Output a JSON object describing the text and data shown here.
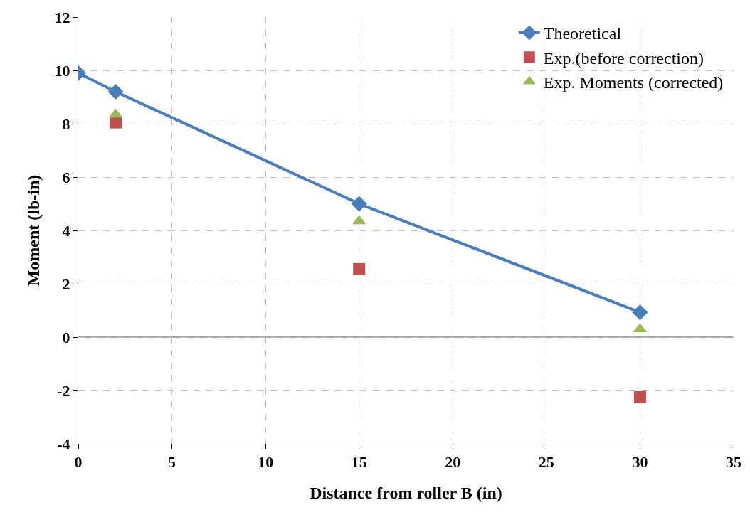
{
  "chart_data": {
    "type": "line",
    "xlabel": "Distance from roller B (in)",
    "ylabel": "Moment (lb-in)",
    "xlim": [
      0,
      35
    ],
    "xticks": [
      0,
      5,
      10,
      15,
      20,
      25,
      30,
      35
    ],
    "ylim": [
      -4,
      12
    ],
    "yticks": [
      -4,
      -2,
      0,
      2,
      4,
      6,
      8,
      10,
      12
    ],
    "grid": true,
    "legend": "top right",
    "ref_lines": [
      {
        "axis": "y",
        "value": 0,
        "color": "#a6a6a6",
        "line_style": "solid"
      }
    ],
    "series": [
      {
        "name": "Theoretical",
        "color": "#4a7ebb",
        "marker": "diamond",
        "line_style": "solid",
        "x": [
          0,
          2,
          15,
          30
        ],
        "values": [
          9.9,
          9.2,
          5.0,
          0.93
        ]
      },
      {
        "name": "Exp.(before correction)",
        "type": "scatter",
        "color": "#c0504d",
        "marker": "square",
        "x": [
          2,
          15,
          30
        ],
        "values": [
          8.05,
          2.55,
          -2.25
        ]
      },
      {
        "name": "Exp. Moments (corrected)",
        "type": "scatter",
        "color": "#9bbb59",
        "marker": "triangle",
        "x": [
          2,
          15,
          30
        ],
        "values": [
          8.35,
          4.35,
          0.3
        ]
      }
    ]
  }
}
